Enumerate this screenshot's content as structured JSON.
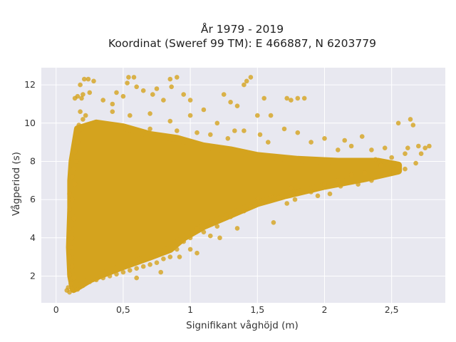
{
  "chart_data": {
    "type": "scatter",
    "title_line1": "År 1979 - 2019",
    "title_line2": "Koordinat (Sweref 99 TM): E 466887, N 6203779",
    "xlabel": "Signifikant våghöjd (m)",
    "ylabel": "Vågperiod (s)",
    "xlim": [
      -0.11,
      2.9
    ],
    "ylim": [
      0.6,
      12.9
    ],
    "x_ticks": [
      0,
      0.5,
      1,
      1.5,
      2,
      2.5
    ],
    "x_tick_labels": [
      "0",
      "0,5",
      "1",
      "1,5",
      "2",
      "2,5"
    ],
    "y_ticks": [
      2,
      4,
      6,
      8,
      10,
      12
    ],
    "y_tick_labels": [
      "2",
      "4",
      "6",
      "8",
      "10",
      "12"
    ],
    "grid": true,
    "marker_color": "#D4A31E",
    "background_color": "#E8E8F0",
    "points": [
      [
        0.08,
        1.25
      ],
      [
        0.1,
        1.15
      ],
      [
        0.12,
        1.3
      ],
      [
        0.09,
        1.4
      ],
      [
        0.11,
        1.6
      ],
      [
        0.13,
        1.9
      ],
      [
        0.1,
        2.1
      ],
      [
        0.12,
        2.5
      ],
      [
        0.1,
        3.0
      ],
      [
        0.11,
        3.5
      ],
      [
        0.12,
        4.0
      ],
      [
        0.1,
        4.5
      ],
      [
        0.13,
        5.0
      ],
      [
        0.1,
        5.5
      ],
      [
        0.12,
        6.0
      ],
      [
        0.1,
        6.3
      ],
      [
        0.14,
        6.8
      ],
      [
        0.12,
        7.2
      ],
      [
        0.13,
        7.6
      ],
      [
        0.15,
        8.0
      ],
      [
        0.14,
        8.5
      ],
      [
        0.16,
        9.0
      ],
      [
        0.15,
        9.5
      ],
      [
        0.17,
        9.9
      ],
      [
        0.2,
        10.2
      ],
      [
        0.18,
        10.6
      ],
      [
        0.22,
        10.4
      ],
      [
        0.14,
        11.3
      ],
      [
        0.16,
        11.4
      ],
      [
        0.2,
        11.5
      ],
      [
        0.19,
        11.3
      ],
      [
        0.25,
        11.6
      ],
      [
        0.18,
        12.0
      ],
      [
        0.21,
        12.3
      ],
      [
        0.24,
        12.3
      ],
      [
        0.28,
        12.2
      ],
      [
        0.35,
        11.2
      ],
      [
        0.42,
        11.0
      ],
      [
        0.45,
        11.6
      ],
      [
        0.5,
        11.4
      ],
      [
        0.53,
        12.1
      ],
      [
        0.54,
        12.4
      ],
      [
        0.58,
        12.4
      ],
      [
        0.6,
        11.9
      ],
      [
        0.65,
        11.7
      ],
      [
        0.72,
        11.5
      ],
      [
        0.75,
        11.8
      ],
      [
        0.8,
        11.2
      ],
      [
        0.85,
        12.3
      ],
      [
        0.86,
        11.9
      ],
      [
        0.9,
        12.4
      ],
      [
        0.95,
        11.5
      ],
      [
        1.0,
        11.2
      ],
      [
        0.42,
        10.6
      ],
      [
        0.55,
        10.4
      ],
      [
        0.7,
        10.5
      ],
      [
        0.85,
        10.1
      ],
      [
        1.0,
        10.4
      ],
      [
        1.1,
        10.7
      ],
      [
        1.2,
        10.0
      ],
      [
        1.35,
        10.9
      ],
      [
        1.4,
        12.0
      ],
      [
        1.42,
        12.2
      ],
      [
        1.45,
        12.4
      ],
      [
        1.3,
        11.1
      ],
      [
        1.25,
        11.5
      ],
      [
        1.55,
        11.3
      ],
      [
        1.6,
        10.4
      ],
      [
        1.72,
        11.3
      ],
      [
        1.75,
        11.2
      ],
      [
        1.8,
        11.3
      ],
      [
        1.85,
        11.3
      ],
      [
        1.5,
        10.4
      ],
      [
        1.4,
        9.6
      ],
      [
        1.7,
        9.7
      ],
      [
        1.8,
        9.5
      ],
      [
        1.9,
        9.0
      ],
      [
        2.0,
        9.2
      ],
      [
        2.1,
        8.6
      ],
      [
        2.15,
        9.1
      ],
      [
        2.2,
        8.8
      ],
      [
        2.28,
        9.3
      ],
      [
        2.35,
        8.6
      ],
      [
        2.38,
        8.1
      ],
      [
        2.45,
        8.7
      ],
      [
        2.5,
        8.2
      ],
      [
        2.55,
        7.7
      ],
      [
        2.6,
        8.4
      ],
      [
        2.62,
        8.7
      ],
      [
        2.66,
        9.9
      ],
      [
        2.55,
        10.0
      ],
      [
        2.64,
        10.2
      ],
      [
        2.7,
        8.8
      ],
      [
        2.75,
        8.7
      ],
      [
        2.78,
        8.8
      ],
      [
        2.5,
        7.5
      ],
      [
        2.42,
        7.8
      ],
      [
        2.3,
        7.4
      ],
      [
        2.2,
        7.3
      ],
      [
        2.1,
        7.0
      ],
      [
        2.0,
        6.8
      ],
      [
        1.9,
        6.4
      ],
      [
        1.8,
        6.3
      ],
      [
        1.75,
        6.6
      ],
      [
        1.66,
        6.1
      ],
      [
        1.6,
        6.2
      ],
      [
        1.5,
        6.0
      ],
      [
        1.45,
        5.6
      ],
      [
        1.4,
        5.4
      ],
      [
        1.3,
        5.1
      ],
      [
        1.25,
        5.0
      ],
      [
        1.2,
        4.6
      ],
      [
        1.1,
        4.3
      ],
      [
        1.05,
        4.5
      ],
      [
        1.0,
        4.0
      ],
      [
        0.95,
        3.8
      ],
      [
        0.9,
        3.4
      ],
      [
        0.85,
        3.0
      ],
      [
        0.8,
        2.9
      ],
      [
        0.75,
        2.7
      ],
      [
        0.7,
        2.6
      ],
      [
        0.65,
        2.5
      ],
      [
        0.6,
        2.4
      ],
      [
        0.55,
        2.3
      ],
      [
        0.5,
        2.2
      ],
      [
        0.45,
        2.1
      ],
      [
        0.4,
        2.0
      ],
      [
        0.35,
        1.9
      ],
      [
        0.3,
        1.8
      ],
      [
        0.25,
        1.7
      ],
      [
        0.2,
        1.5
      ],
      [
        0.16,
        1.3
      ],
      [
        1.05,
        3.2
      ],
      [
        1.0,
        3.4
      ],
      [
        0.92,
        3.0
      ],
      [
        1.15,
        4.1
      ],
      [
        1.22,
        4.0
      ],
      [
        1.35,
        4.5
      ],
      [
        1.62,
        4.8
      ],
      [
        1.78,
        6.0
      ],
      [
        1.72,
        5.8
      ],
      [
        1.95,
        6.2
      ],
      [
        2.04,
        6.3
      ],
      [
        2.12,
        6.7
      ],
      [
        2.25,
        6.8
      ],
      [
        2.35,
        7.0
      ],
      [
        2.45,
        7.3
      ],
      [
        2.6,
        7.6
      ],
      [
        2.68,
        7.9
      ],
      [
        2.72,
        8.4
      ],
      [
        0.6,
        1.9
      ],
      [
        0.78,
        2.2
      ],
      [
        0.7,
        9.7
      ],
      [
        0.9,
        9.6
      ],
      [
        1.05,
        9.5
      ],
      [
        1.15,
        9.4
      ],
      [
        1.28,
        9.2
      ],
      [
        1.33,
        9.6
      ],
      [
        1.52,
        9.4
      ],
      [
        1.58,
        9.0
      ]
    ],
    "dense_region": {
      "upper": [
        [
          0.12,
          8.0
        ],
        [
          0.16,
          9.7
        ],
        [
          0.3,
          10.0
        ],
        [
          0.5,
          9.8
        ],
        [
          0.7,
          9.4
        ],
        [
          0.9,
          9.2
        ],
        [
          1.1,
          8.8
        ],
        [
          1.3,
          8.6
        ],
        [
          1.5,
          8.3
        ],
        [
          1.8,
          8.1
        ],
        [
          2.1,
          8.0
        ],
        [
          2.4,
          8.0
        ],
        [
          2.55,
          7.8
        ]
      ],
      "lower": [
        [
          2.55,
          7.5
        ],
        [
          2.3,
          7.1
        ],
        [
          2.0,
          6.7
        ],
        [
          1.7,
          6.2
        ],
        [
          1.5,
          5.8
        ],
        [
          1.3,
          5.2
        ],
        [
          1.1,
          4.6
        ],
        [
          0.95,
          4.0
        ],
        [
          0.85,
          3.4
        ],
        [
          0.7,
          3.0
        ],
        [
          0.5,
          2.5
        ],
        [
          0.35,
          2.1
        ],
        [
          0.25,
          1.8
        ],
        [
          0.18,
          1.5
        ],
        [
          0.13,
          1.3
        ],
        [
          0.11,
          2.0
        ],
        [
          0.1,
          3.5
        ],
        [
          0.11,
          5.5
        ],
        [
          0.11,
          7.0
        ]
      ]
    }
  }
}
